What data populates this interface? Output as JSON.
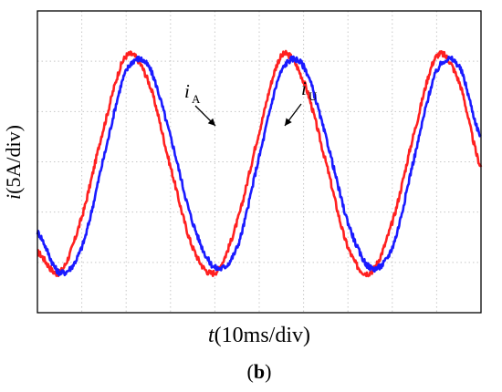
{
  "chart_data": {
    "type": "line",
    "xlabel": {
      "var": "t",
      "unit": "(10ms/div)"
    },
    "ylabel": {
      "var": "i",
      "unit": "(5A/div)"
    },
    "caption": {
      "open": "(",
      "letter": "b",
      "close": ")"
    },
    "xlim": [
      0,
      10
    ],
    "ylim": [
      -3,
      3
    ],
    "grid": true,
    "x_divisions": 10,
    "y_divisions": 6,
    "series": [
      {
        "name": "iA",
        "label": {
          "main": "i",
          "sub": "A"
        },
        "color": "#ff2020",
        "x": [
          0,
          0.5,
          1,
          1.5,
          2,
          2.5,
          3,
          3.5,
          4,
          4.5,
          5,
          5.5,
          6,
          6.5,
          7,
          7.5,
          8,
          8.5,
          9,
          9.5,
          10
        ],
        "y": [
          -1.8,
          -2.2,
          -1.1,
          0.7,
          2.1,
          1.6,
          -0.1,
          -1.7,
          -2.2,
          -1.2,
          0.6,
          2.1,
          1.6,
          0.0,
          -1.7,
          -2.2,
          -1.2,
          0.6,
          2.1,
          1.6,
          -0.1
        ]
      },
      {
        "name": "iU",
        "label": {
          "main": "i",
          "sub": "U"
        },
        "color": "#1a1aff",
        "x": [
          0,
          0.5,
          1,
          1.5,
          2,
          2.5,
          3,
          3.5,
          4,
          4.5,
          5,
          5.5,
          6,
          6.5,
          7,
          7.5,
          8,
          8.5,
          9,
          9.5,
          10
        ],
        "y": [
          -1.4,
          -2.2,
          -1.7,
          0.1,
          1.8,
          1.9,
          0.5,
          -1.2,
          -2.1,
          -1.7,
          0.1,
          1.8,
          1.9,
          0.5,
          -1.2,
          -2.1,
          -1.7,
          0.1,
          1.8,
          1.9,
          0.5
        ]
      }
    ]
  }
}
